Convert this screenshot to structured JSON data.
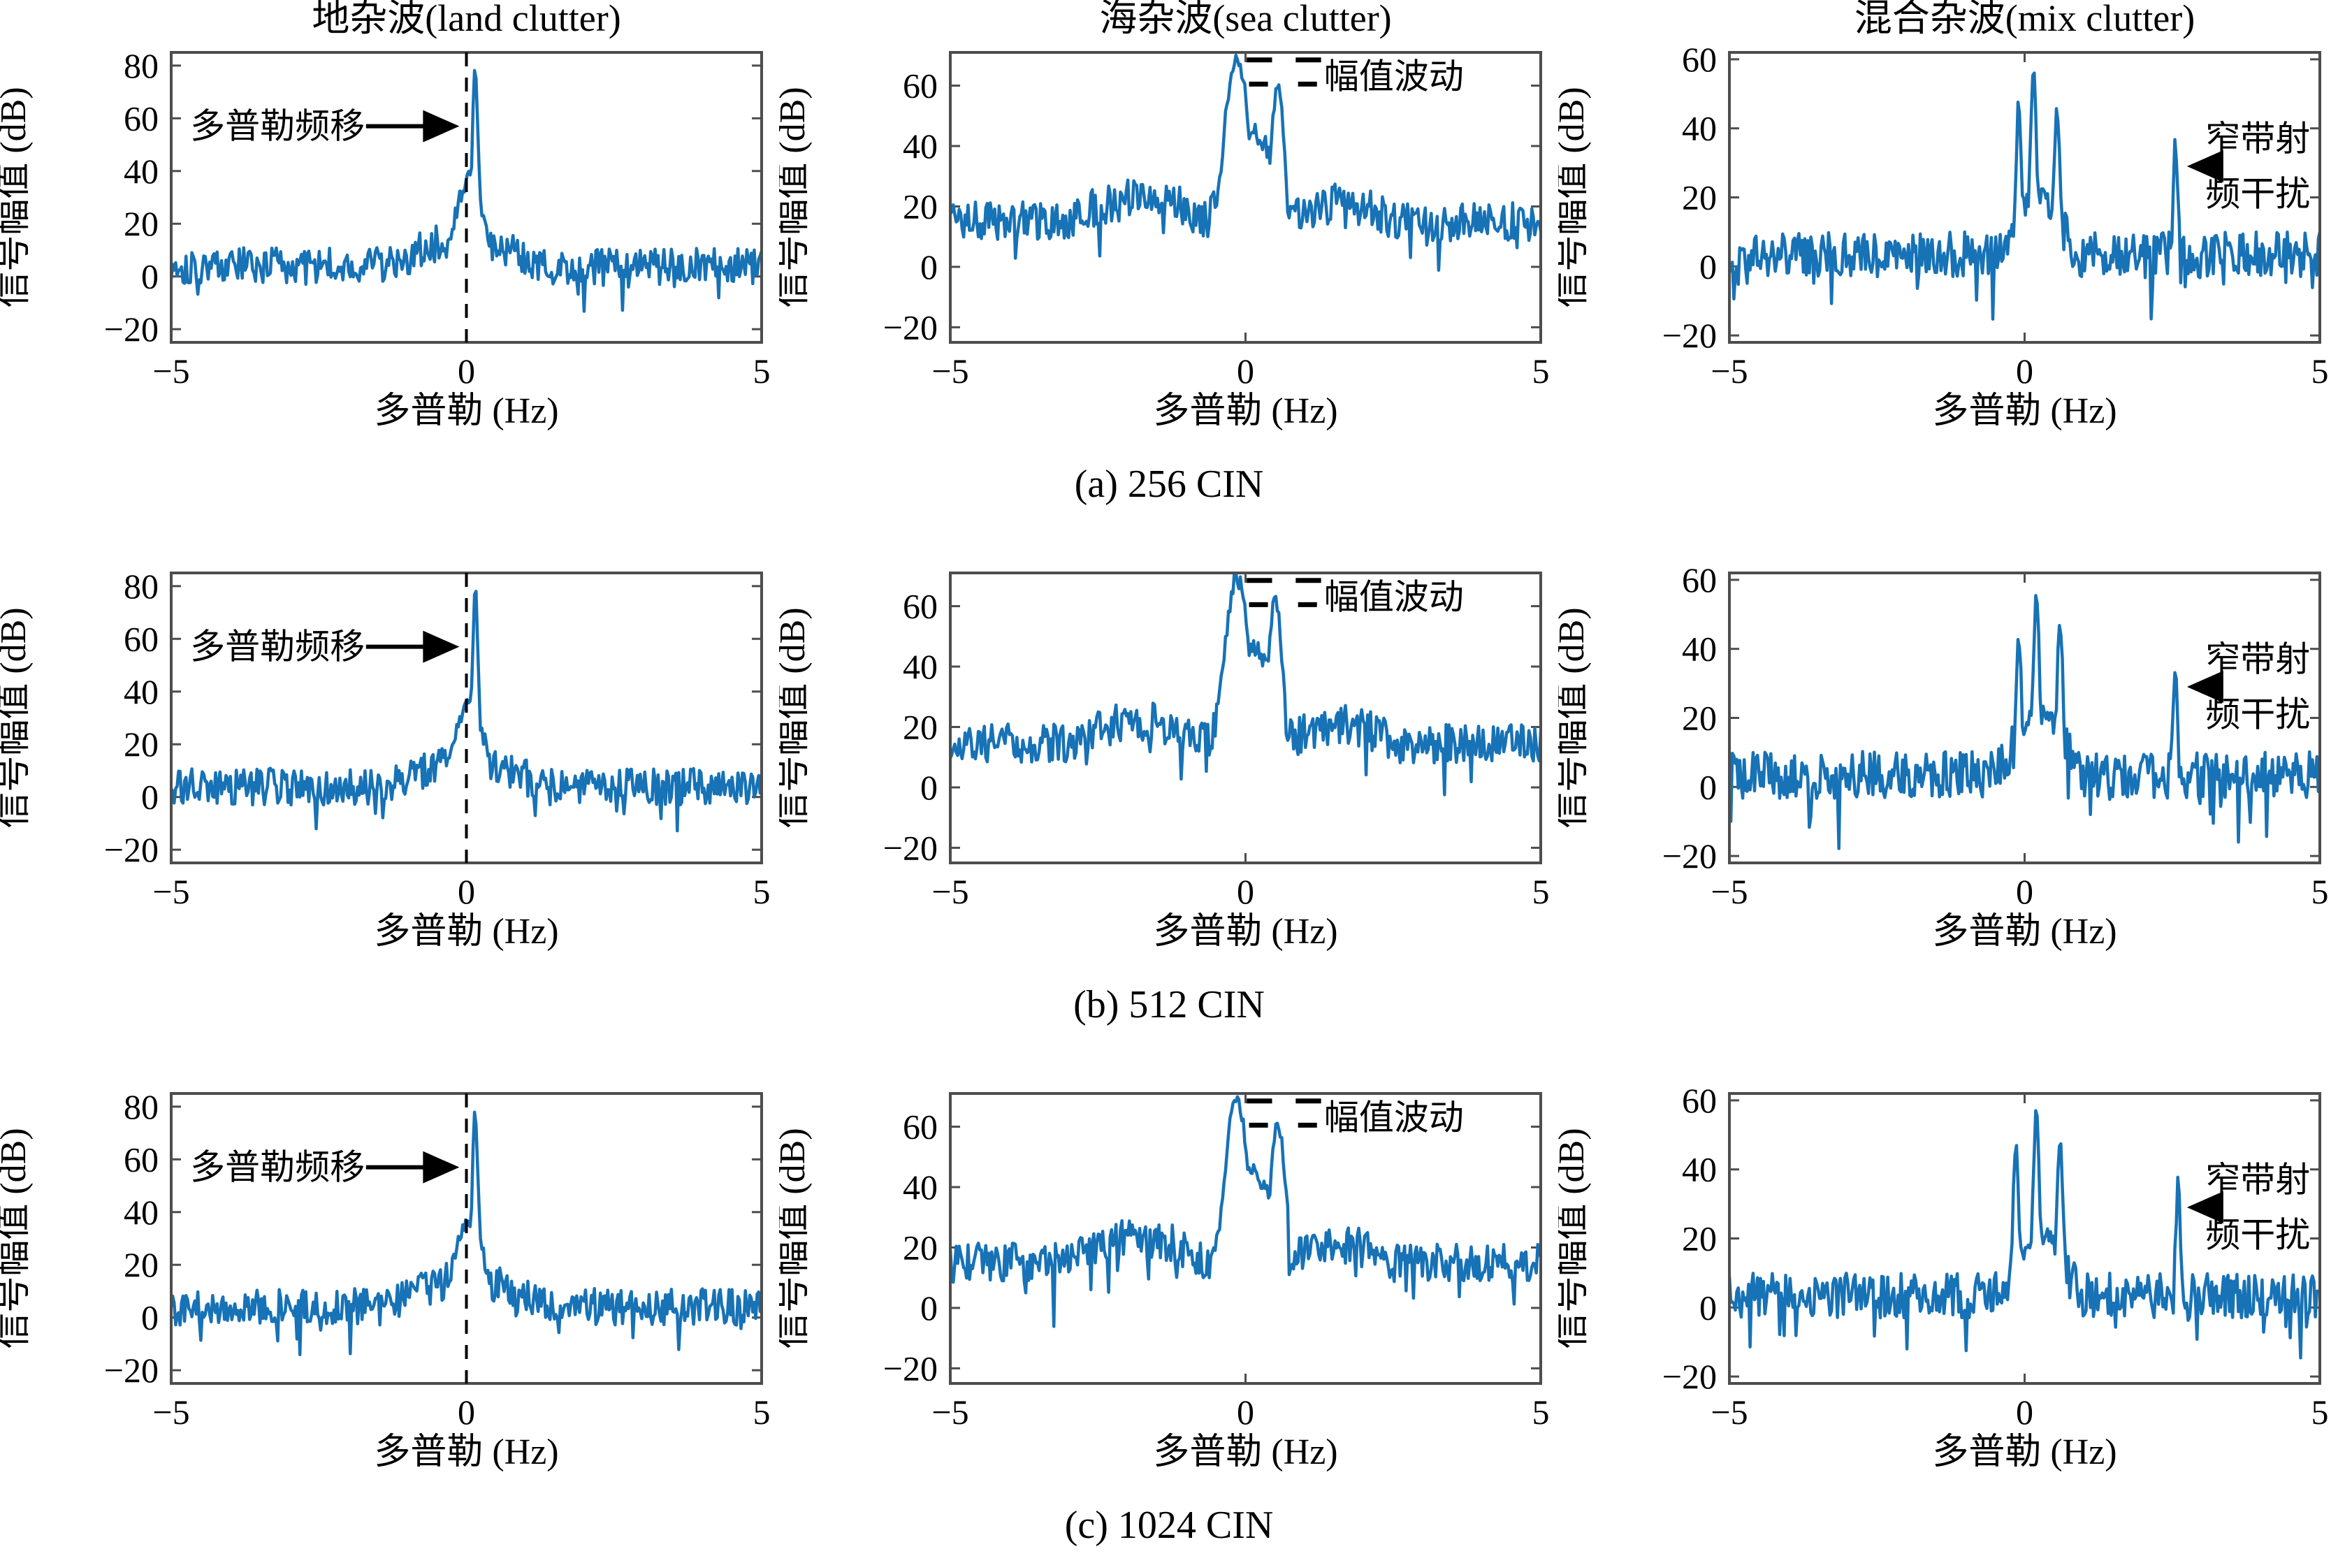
{
  "figure": {
    "captions": [
      "(a) 256 CIN",
      "(b) 512 CIN",
      "(c) 1024 CIN"
    ],
    "colors": {
      "line": "#1772B6",
      "axis": "#4D4D4D",
      "text": "#000000",
      "annotation": "#000000"
    }
  },
  "chart_data": [
    {
      "type": "line",
      "title": "地杂波(land clutter)",
      "xlabel": "多普勒 (Hz)",
      "ylabel": "信号幅值 (dB)",
      "xlim": [
        -5,
        5
      ],
      "ylim": [
        -25,
        85
      ],
      "xticks": [
        -5,
        0,
        5
      ],
      "yticks": [
        -20,
        0,
        20,
        40,
        60,
        80
      ],
      "n_points": 400,
      "seed": 101,
      "baseline_db": 4,
      "noise_db": 7,
      "dip_probability": 0.06,
      "dip_depth_db": 17,
      "peaks": [
        {
          "x": 0.15,
          "width": 0.055,
          "amplitude_db": 78
        },
        {
          "x": 0.05,
          "width": 0.25,
          "amplitude_db": 37
        },
        {
          "x": 0.0,
          "width": 0.85,
          "amplitude_db": 15
        }
      ],
      "annotations": {
        "doppler_shift": {
          "text": "多普勒频移",
          "text_x": -3.2,
          "text_y": 57,
          "arrow_from": [
            -1.7,
            57
          ],
          "arrow_to": [
            -0.12,
            57
          ],
          "dashed_line_x": 0
        }
      }
    },
    {
      "type": "line",
      "title": "海杂波(sea clutter)",
      "xlabel": "多普勒 (Hz)",
      "ylabel": "信号幅值 (dB)",
      "xlim": [
        -5,
        5
      ],
      "ylim": [
        -25,
        71
      ],
      "xticks": [
        -5,
        0,
        5
      ],
      "yticks": [
        -20,
        0,
        20,
        40,
        60
      ],
      "n_points": 400,
      "seed": 102,
      "baseline_db": 15,
      "noise_db": 6.5,
      "dip_probability": 0.04,
      "dip_depth_db": 16,
      "peaks": [
        {
          "x": -0.15,
          "width": 0.22,
          "amplitude_db": 70
        },
        {
          "x": 0.1,
          "width": 0.5,
          "amplitude_db": 45
        },
        {
          "x": 0.55,
          "width": 0.12,
          "amplitude_db": 62
        },
        {
          "x": -1.8,
          "width": 1.3,
          "amplitude_db": 23
        },
        {
          "x": 1.6,
          "width": 1.1,
          "amplitude_db": 21
        }
      ],
      "annotations": {
        "amplitude_fluctuation": {
          "text": "幅值波动",
          "text_x": 1.33,
          "text_y": 63,
          "dash_rows": [
            {
              "y": 68.5,
              "segments": [
                [
                  0.02,
                  0.45
                ],
                [
                  0.85,
                  1.28
                ]
              ]
            },
            {
              "y": 60.5,
              "segments": [
                [
                  0.06,
                  0.38
                ],
                [
                  0.89,
                  1.21
                ]
              ]
            }
          ]
        }
      }
    },
    {
      "type": "line",
      "title": "混合杂波(mix clutter)",
      "xlabel": "多普勒 (Hz)",
      "ylabel": "信号幅值 (dB)",
      "xlim": [
        -5,
        5
      ],
      "ylim": [
        -22,
        62
      ],
      "xticks": [
        -5,
        0,
        5
      ],
      "yticks": [
        -20,
        0,
        20,
        40,
        60
      ],
      "n_points": 400,
      "seed": 103,
      "baseline_db": 3.5,
      "noise_db": 6.5,
      "dip_probability": 0.06,
      "dip_depth_db": 17,
      "peaks": [
        {
          "x": -0.1,
          "width": 0.05,
          "amplitude_db": 46
        },
        {
          "x": 0.15,
          "width": 0.055,
          "amplitude_db": 55
        },
        {
          "x": 0.55,
          "width": 0.05,
          "amplitude_db": 46
        },
        {
          "x": 0.2,
          "width": 0.4,
          "amplitude_db": 20
        },
        {
          "x": 2.55,
          "width": 0.04,
          "amplitude_db": 34
        }
      ],
      "annotations": {
        "narrowband_rfi": {
          "lines": [
            "窄带射",
            "频干扰"
          ],
          "text_x": 3.95,
          "line_y": [
            37,
            21
          ],
          "arrow_from": [
            3.3,
            29
          ],
          "arrow_to": [
            2.75,
            29
          ]
        }
      }
    },
    {
      "type": "line",
      "title": "",
      "xlabel": "多普勒 (Hz)",
      "ylabel": "信号幅值 (dB)",
      "xlim": [
        -5,
        5
      ],
      "ylim": [
        -25,
        85
      ],
      "xticks": [
        -5,
        0,
        5
      ],
      "yticks": [
        -20,
        0,
        20,
        40,
        60,
        80
      ],
      "n_points": 400,
      "seed": 201,
      "baseline_db": 4,
      "noise_db": 7,
      "dip_probability": 0.06,
      "dip_depth_db": 17,
      "peaks": [
        {
          "x": 0.15,
          "width": 0.055,
          "amplitude_db": 78
        },
        {
          "x": 0.05,
          "width": 0.25,
          "amplitude_db": 36
        },
        {
          "x": 0.0,
          "width": 0.85,
          "amplitude_db": 15
        }
      ],
      "annotations": {
        "doppler_shift": {
          "text": "多普勒频移",
          "text_x": -3.2,
          "text_y": 57,
          "arrow_from": [
            -1.7,
            57
          ],
          "arrow_to": [
            -0.12,
            57
          ],
          "dashed_line_x": 0
        }
      }
    },
    {
      "type": "line",
      "title": "",
      "xlabel": "多普勒 (Hz)",
      "ylabel": "信号幅值 (dB)",
      "xlim": [
        -5,
        5
      ],
      "ylim": [
        -25,
        71
      ],
      "xticks": [
        -5,
        0,
        5
      ],
      "yticks": [
        -20,
        0,
        20,
        40,
        60
      ],
      "n_points": 400,
      "seed": 202,
      "baseline_db": 14.5,
      "noise_db": 6.5,
      "dip_probability": 0.04,
      "dip_depth_db": 16,
      "peaks": [
        {
          "x": -0.15,
          "width": 0.22,
          "amplitude_db": 70
        },
        {
          "x": 0.1,
          "width": 0.5,
          "amplitude_db": 46
        },
        {
          "x": 0.5,
          "width": 0.13,
          "amplitude_db": 63
        },
        {
          "x": -1.8,
          "width": 1.3,
          "amplitude_db": 22
        },
        {
          "x": 1.6,
          "width": 1.1,
          "amplitude_db": 21
        }
      ],
      "annotations": {
        "amplitude_fluctuation": {
          "text": "幅值波动",
          "text_x": 1.33,
          "text_y": 63,
          "dash_rows": [
            {
              "y": 68.5,
              "segments": [
                [
                  0.02,
                  0.45
                ],
                [
                  0.85,
                  1.28
                ]
              ]
            },
            {
              "y": 60.5,
              "segments": [
                [
                  0.06,
                  0.38
                ],
                [
                  0.89,
                  1.21
                ]
              ]
            }
          ]
        }
      }
    },
    {
      "type": "line",
      "title": "",
      "xlabel": "多普勒 (Hz)",
      "ylabel": "信号幅值 (dB)",
      "xlim": [
        -5,
        5
      ],
      "ylim": [
        -22,
        62
      ],
      "xticks": [
        -5,
        0,
        5
      ],
      "yticks": [
        -20,
        0,
        20,
        40,
        60
      ],
      "n_points": 400,
      "seed": 203,
      "baseline_db": 3.5,
      "noise_db": 6.8,
      "dip_probability": 0.06,
      "dip_depth_db": 17,
      "peaks": [
        {
          "x": -0.1,
          "width": 0.05,
          "amplitude_db": 45
        },
        {
          "x": 0.2,
          "width": 0.055,
          "amplitude_db": 55
        },
        {
          "x": 0.6,
          "width": 0.05,
          "amplitude_db": 48
        },
        {
          "x": 0.25,
          "width": 0.4,
          "amplitude_db": 21
        },
        {
          "x": 2.55,
          "width": 0.04,
          "amplitude_db": 36
        }
      ],
      "annotations": {
        "narrowband_rfi": {
          "lines": [
            "窄带射",
            "频干扰"
          ],
          "text_x": 3.95,
          "line_y": [
            37,
            21
          ],
          "arrow_from": [
            3.3,
            29
          ],
          "arrow_to": [
            2.75,
            29
          ]
        }
      }
    },
    {
      "type": "line",
      "title": "",
      "xlabel": "多普勒 (Hz)",
      "ylabel": "信号幅值 (dB)",
      "xlim": [
        -5,
        5
      ],
      "ylim": [
        -25,
        85
      ],
      "xticks": [
        -5,
        0,
        5
      ],
      "yticks": [
        -20,
        0,
        20,
        40,
        60,
        80
      ],
      "n_points": 400,
      "seed": 301,
      "baseline_db": 4,
      "noise_db": 7,
      "dip_probability": 0.06,
      "dip_depth_db": 17,
      "peaks": [
        {
          "x": 0.15,
          "width": 0.055,
          "amplitude_db": 77
        },
        {
          "x": 0.05,
          "width": 0.25,
          "amplitude_db": 37
        },
        {
          "x": 0.0,
          "width": 0.85,
          "amplitude_db": 15
        }
      ],
      "annotations": {
        "doppler_shift": {
          "text": "多普勒频移",
          "text_x": -3.2,
          "text_y": 57,
          "arrow_from": [
            -1.7,
            57
          ],
          "arrow_to": [
            -0.12,
            57
          ],
          "dashed_line_x": 0
        }
      }
    },
    {
      "type": "line",
      "title": "",
      "xlabel": "多普勒 (Hz)",
      "ylabel": "信号幅值 (dB)",
      "xlim": [
        -5,
        5
      ],
      "ylim": [
        -25,
        71
      ],
      "xticks": [
        -5,
        0,
        5
      ],
      "yticks": [
        -20,
        0,
        20,
        40,
        60
      ],
      "n_points": 400,
      "seed": 302,
      "baseline_db": 15,
      "noise_db": 6.5,
      "dip_probability": 0.045,
      "dip_depth_db": 16,
      "peaks": [
        {
          "x": -0.15,
          "width": 0.22,
          "amplitude_db": 69
        },
        {
          "x": 0.1,
          "width": 0.5,
          "amplitude_db": 45
        },
        {
          "x": 0.55,
          "width": 0.14,
          "amplitude_db": 61
        },
        {
          "x": -1.8,
          "width": 1.3,
          "amplitude_db": 23
        },
        {
          "x": 1.6,
          "width": 1.1,
          "amplitude_db": 21
        }
      ],
      "annotations": {
        "amplitude_fluctuation": {
          "text": "幅值波动",
          "text_x": 1.33,
          "text_y": 63,
          "dash_rows": [
            {
              "y": 68.5,
              "segments": [
                [
                  0.02,
                  0.45
                ],
                [
                  0.85,
                  1.28
                ]
              ]
            },
            {
              "y": 60.5,
              "segments": [
                [
                  0.06,
                  0.38
                ],
                [
                  0.89,
                  1.21
                ]
              ]
            }
          ]
        }
      }
    },
    {
      "type": "line",
      "title": "",
      "xlabel": "多普勒 (Hz)",
      "ylabel": "信号幅值 (dB)",
      "xlim": [
        -5,
        5
      ],
      "ylim": [
        -22,
        62
      ],
      "xticks": [
        -5,
        0,
        5
      ],
      "yticks": [
        -20,
        0,
        20,
        40,
        60
      ],
      "n_points": 400,
      "seed": 303,
      "baseline_db": 3.5,
      "noise_db": 6.5,
      "dip_probability": 0.06,
      "dip_depth_db": 17,
      "peaks": [
        {
          "x": -0.15,
          "width": 0.05,
          "amplitude_db": 45
        },
        {
          "x": 0.2,
          "width": 0.055,
          "amplitude_db": 57
        },
        {
          "x": 0.6,
          "width": 0.05,
          "amplitude_db": 50
        },
        {
          "x": 0.25,
          "width": 0.4,
          "amplitude_db": 21
        },
        {
          "x": 2.6,
          "width": 0.04,
          "amplitude_db": 35
        }
      ],
      "annotations": {
        "narrowband_rfi": {
          "lines": [
            "窄带射",
            "频干扰"
          ],
          "text_x": 3.95,
          "line_y": [
            37,
            21
          ],
          "arrow_from": [
            3.3,
            29
          ],
          "arrow_to": [
            2.75,
            29
          ]
        }
      }
    }
  ]
}
